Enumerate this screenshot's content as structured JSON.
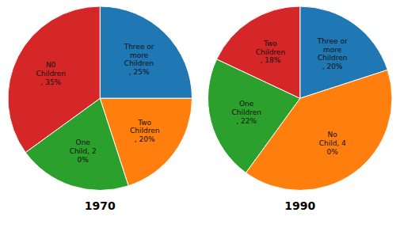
{
  "chart_data": [
    {
      "type": "pie",
      "title": "1970",
      "categories": [
        "Three or\nmore\nChildren\n, 25%",
        "Two\nChildren\n, 20%",
        "One\nChild, 2\n0%",
        "N0\nChildren\n, 35%"
      ],
      "values": [
        25,
        20,
        20,
        35
      ]
    },
    {
      "type": "pie",
      "title": "1990",
      "categories": [
        "Three or\nmore\nChildren\n, 20%",
        "No\nChild, 4\n0%",
        "One\nChildren\n, 22%",
        "Two\nChildren\n, 18%"
      ],
      "values": [
        20,
        40,
        22,
        18
      ]
    }
  ]
}
